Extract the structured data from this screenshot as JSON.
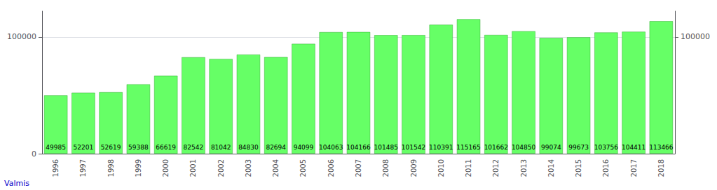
{
  "chart_data": {
    "type": "bar",
    "categories": [
      "1996",
      "1997",
      "1998",
      "1999",
      "2000",
      "2001",
      "2002",
      "2003",
      "2004",
      "2005",
      "2006",
      "2007",
      "2008",
      "2009",
      "2010",
      "2011",
      "2012",
      "2013",
      "2014",
      "2015",
      "2016",
      "2017",
      "2018"
    ],
    "values": [
      49985,
      52201,
      52619,
      59388,
      66619,
      82542,
      81042,
      84830,
      82694,
      94099,
      104063,
      104166,
      101485,
      101542,
      110391,
      115165,
      101662,
      104850,
      99074,
      99673,
      103756,
      104411,
      113466
    ],
    "color": "#66FF66",
    "ylim": [
      0,
      122000
    ],
    "yticks": [
      0,
      100000
    ],
    "y2lim": [
      0,
      122000
    ],
    "y2ticks": [
      100000
    ],
    "grid": true,
    "data_labels": true,
    "annotations": [
      "Valmis"
    ]
  }
}
